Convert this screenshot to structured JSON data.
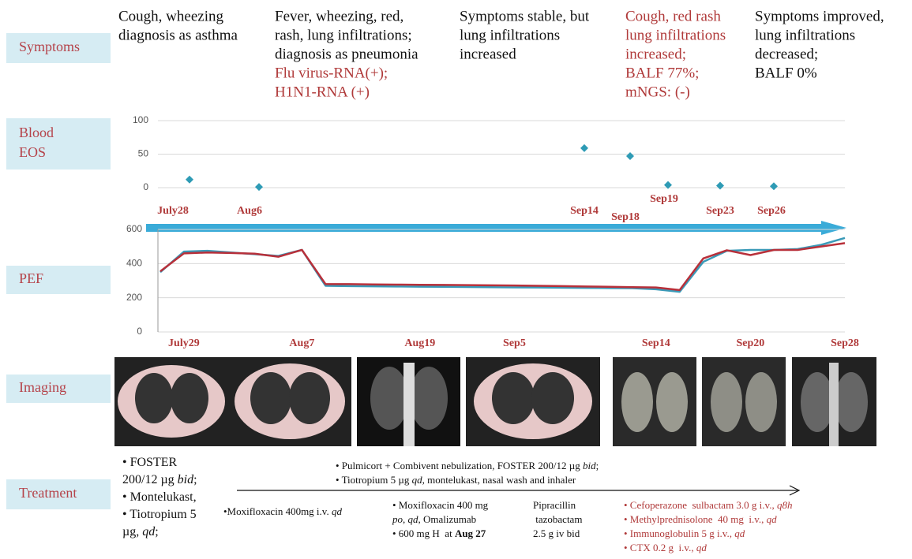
{
  "row_labels": [
    "Symptoms",
    "Blood\nEOS",
    "PEF",
    "Imaging",
    "Treatment"
  ],
  "symptoms": [
    [
      {
        "color": "#111111",
        "lines": [
          "Cough, wheezing",
          "diagnosis as asthma"
        ]
      }
    ],
    [
      {
        "color": "#111111",
        "lines": [
          "Fever, wheezing, red,",
          "rash, lung infiltrations;",
          "diagnosis as pneumonia"
        ]
      },
      {
        "color": "#b03a3a",
        "lines": [
          "Flu virus-RNA(+);",
          "H1N1-RNA (+)"
        ]
      }
    ],
    [
      {
        "color": "#111111",
        "lines": [
          "Symptoms stable, but",
          "lung infiltrations",
          "increased"
        ]
      }
    ],
    [
      {
        "color": "#b03a3a",
        "lines": [
          "Cough, red rash",
          "lung infiltrations",
          "increased;",
          "BALF 77%;",
          "mNGS: (-)"
        ]
      }
    ],
    [
      {
        "color": "#111111",
        "lines": [
          "Symptoms improved,",
          "lung infiltrations",
          "decreased;",
          "BALF 0%"
        ]
      }
    ]
  ],
  "chart_data": [
    {
      "type": "scatter",
      "categories": [
        "July28",
        "Aug6",
        "Sep14",
        "Sep18",
        "Sep19",
        "Sep23",
        "Sep26"
      ],
      "values": [
        12,
        1,
        59,
        47,
        4,
        3,
        2
      ],
      "color": "#2e9bb5",
      "label_color": "#b03a3a",
      "ylim": [
        0,
        100
      ],
      "yticks": [
        0,
        50,
        100
      ],
      "grid": true
    },
    {
      "type": "line",
      "categories": [
        null,
        "July29",
        null,
        null,
        null,
        null,
        "Aug7",
        null,
        null,
        null,
        null,
        "Aug19",
        null,
        null,
        null,
        "Sep5",
        null,
        null,
        null,
        null,
        null,
        "Sep14",
        null,
        null,
        null,
        "Sep20",
        null,
        null,
        null,
        "Sep28"
      ],
      "series": [
        {
          "color": "#3a9ab8",
          "values": [
            350,
            470,
            475,
            465,
            455,
            445,
            480,
            270,
            268,
            267,
            266,
            265,
            264,
            263,
            262,
            261,
            260,
            259,
            258,
            257,
            256,
            250,
            235,
            410,
            475,
            480,
            480,
            485,
            510,
            550
          ]
        },
        {
          "color": "#b8303a",
          "values": [
            355,
            460,
            465,
            462,
            458,
            440,
            480,
            280,
            280,
            278,
            277,
            276,
            275,
            274,
            273,
            272,
            270,
            268,
            266,
            264,
            262,
            260,
            245,
            430,
            478,
            450,
            480,
            480,
            500,
            520
          ]
        }
      ],
      "label_color": "#b03a3a",
      "ylim": [
        0,
        600
      ],
      "yticks": [
        0,
        200,
        400,
        600
      ],
      "grid": true
    }
  ],
  "treatment": [
    {
      "color": "#111111",
      "lines": [
        [
          {
            "text": "• FOSTER"
          }
        ],
        [
          {
            "text": "200/12 µg "
          },
          {
            "text": "bid",
            "style": "italic"
          },
          {
            "text": ";"
          }
        ],
        [
          {
            "text": "• Montelukast,"
          }
        ],
        [
          {
            "text": "• Tiotropium 5"
          }
        ],
        [
          {
            "text": "µg, "
          },
          {
            "text": "qd",
            "style": "italic"
          },
          {
            "text": ";"
          }
        ]
      ]
    },
    {
      "color": "#111111",
      "lines": [
        [
          {
            "text": "• Pulmicort + Combivent nebulization, FOSTER 200/12 µg "
          },
          {
            "text": "bid",
            "style": "italic"
          },
          {
            "text": ";"
          }
        ],
        [
          {
            "text": "• Tiotropium 5 µg "
          },
          {
            "text": "qd,",
            "style": "italic"
          },
          {
            "text": " montelukast, nasal wash and inhaler"
          }
        ]
      ]
    },
    {
      "color": "#111111",
      "lines": [
        [
          {
            "text": "•Moxifloxacin 400mg i.v. "
          },
          {
            "text": "qd",
            "style": "italic"
          }
        ]
      ]
    },
    {
      "color": "#111111",
      "lines": [
        [
          {
            "text": "• Moxifloxacin 400 mg"
          }
        ],
        [
          {
            "text": "po",
            "style": "italic"
          },
          {
            "text": ", "
          },
          {
            "text": "qd",
            "style": "italic"
          },
          {
            "text": ", Omalizumab"
          }
        ],
        [
          {
            "text": "• 600 mg H  at "
          },
          {
            "text": "Aug 27",
            "style": "bold"
          }
        ]
      ]
    },
    {
      "color": "#111111",
      "lines": [
        [
          {
            "text": "Pipracillin"
          }
        ],
        [
          {
            "text": " tazobactam"
          }
        ],
        [
          {
            "text": "2.5 g iv bid"
          }
        ]
      ]
    },
    {
      "color": "#b03a3a",
      "lines": [
        [
          {
            "text": "• Cefoperazone  sulbactam 3.0 g i.v., "
          },
          {
            "text": "q8h",
            "style": "italic"
          }
        ],
        [
          {
            "text": "• Methylprednisolone  40 mg  i.v., "
          },
          {
            "text": "qd",
            "style": "italic"
          }
        ],
        [
          {
            "text": "• Immunoglobulin 5 g i.v., "
          },
          {
            "text": "qd",
            "style": "italic"
          }
        ],
        [
          {
            "text": "• CTX 0.2 g  i.v., "
          },
          {
            "text": "qd",
            "style": "italic"
          }
        ]
      ]
    }
  ]
}
